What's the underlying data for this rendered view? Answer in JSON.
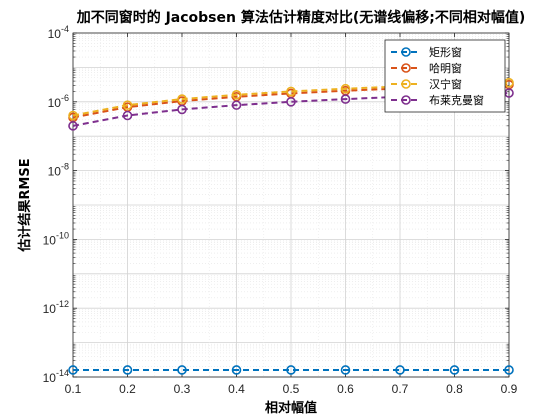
{
  "chart_data": {
    "type": "line",
    "title": "加不同窗时的 Jacobsen 算法估计精度对比(无谱线偏移;不同相对幅值)",
    "xlabel": "相对幅值",
    "ylabel": "估计结果RMSE",
    "x": [
      0.1,
      0.2,
      0.3,
      0.4,
      0.5,
      0.6,
      0.7,
      0.8,
      0.9
    ],
    "x_ticks": [
      "0.1",
      "0.2",
      "0.3",
      "0.4",
      "0.5",
      "0.6",
      "0.7",
      "0.8",
      "0.9"
    ],
    "xlim": [
      0.1,
      0.9
    ],
    "ylim": [
      1e-14,
      0.0001
    ],
    "y_scale": "log",
    "y_ticks": [
      {
        "base": "10",
        "exp": "-14",
        "value": 1e-14
      },
      {
        "base": "10",
        "exp": "-12",
        "value": 1e-12
      },
      {
        "base": "10",
        "exp": "-10",
        "value": 1e-10
      },
      {
        "base": "10",
        "exp": "-8",
        "value": 1e-08
      },
      {
        "base": "10",
        "exp": "-6",
        "value": 1e-06
      },
      {
        "base": "10",
        "exp": "-4",
        "value": 0.0001
      }
    ],
    "grid": true,
    "legend_position": "top-right",
    "series": [
      {
        "name": "矩形窗",
        "color": "#0072BD",
        "values": [
          1.6e-14,
          1.6e-14,
          1.6e-14,
          1.6e-14,
          1.6e-14,
          1.6e-14,
          1.6e-14,
          1.6e-14,
          1.6e-14
        ]
      },
      {
        "name": "哈明窗",
        "color": "#D95319",
        "values": [
          3.5e-07,
          7e-07,
          1.05e-06,
          1.4e-06,
          1.75e-06,
          2.1e-06,
          2.45e-06,
          2.8e-06,
          3.15e-06
        ]
      },
      {
        "name": "汉宁窗",
        "color": "#EDB120",
        "values": [
          4e-07,
          8e-07,
          1.2e-06,
          1.6e-06,
          2e-06,
          2.4e-06,
          2.8e-06,
          3.2e-06,
          3.6e-06
        ]
      },
      {
        "name": "布莱克曼窗",
        "color": "#7E2F8E",
        "values": [
          2e-07,
          4e-07,
          6e-07,
          8e-07,
          1e-06,
          1.2e-06,
          1.4e-06,
          1.6e-06,
          1.8e-06
        ]
      }
    ]
  }
}
